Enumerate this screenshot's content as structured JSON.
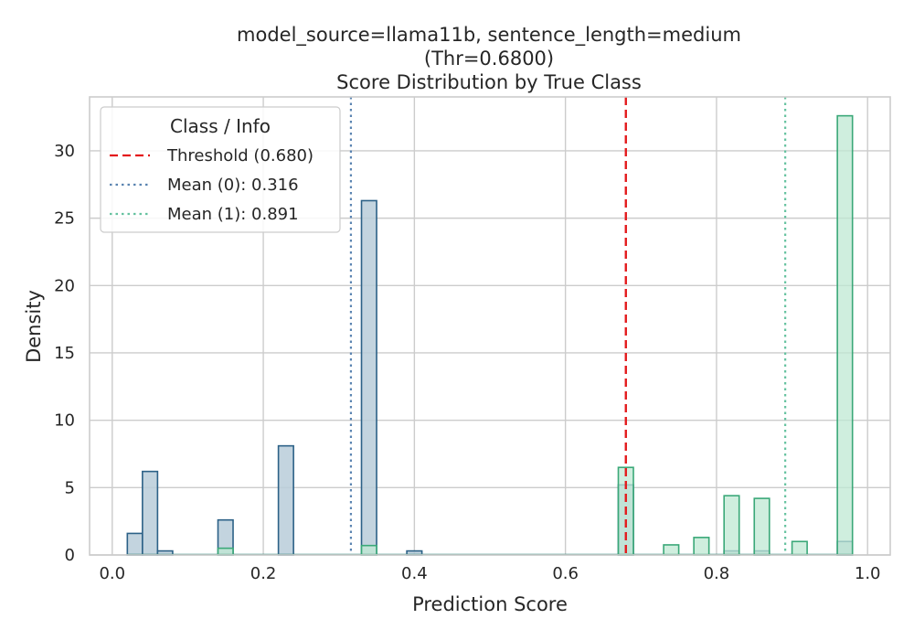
{
  "chart_data": {
    "type": "histogram",
    "title_lines": [
      "model_source=llama11b, sentence_length=medium",
      "(Thr=0.6800)",
      "Score Distribution by True Class"
    ],
    "xlabel": "Prediction Score",
    "ylabel": "Density",
    "xlim": [
      -0.03,
      1.03
    ],
    "ylim": [
      0,
      34
    ],
    "xticks": [
      0.0,
      0.2,
      0.4,
      0.6,
      0.8,
      1.0
    ],
    "xtick_labels": [
      "0.0",
      "0.2",
      "0.4",
      "0.6",
      "0.8",
      "1.0"
    ],
    "yticks": [
      0,
      5,
      10,
      15,
      20,
      25,
      30
    ],
    "ytick_labels": [
      "0",
      "5",
      "10",
      "15",
      "20",
      "25",
      "30"
    ],
    "grid": true,
    "bin_width": 0.02,
    "series": [
      {
        "class": "0",
        "color": "#2c6187",
        "fill": "#b9ccd9",
        "bins": [
          {
            "x0": 0.02,
            "y": 1.6
          },
          {
            "x0": 0.04,
            "y": 6.2
          },
          {
            "x0": 0.06,
            "y": 0.3
          },
          {
            "x0": 0.14,
            "y": 2.6
          },
          {
            "x0": 0.22,
            "y": 8.1
          },
          {
            "x0": 0.33,
            "y": 26.3
          },
          {
            "x0": 0.39,
            "y": 0.3
          },
          {
            "x0": 0.67,
            "y": 5.2
          },
          {
            "x0": 0.81,
            "y": 0.3
          },
          {
            "x0": 0.85,
            "y": 0.3
          },
          {
            "x0": 0.96,
            "y": 1.0
          }
        ],
        "mean": 0.316
      },
      {
        "class": "1",
        "color": "#3aa878",
        "fill": "#bfe8d3",
        "bins": [
          {
            "x0": 0.14,
            "y": 0.5
          },
          {
            "x0": 0.33,
            "y": 0.7
          },
          {
            "x0": 0.67,
            "y": 6.5
          },
          {
            "x0": 0.73,
            "y": 0.75
          },
          {
            "x0": 0.77,
            "y": 1.3
          },
          {
            "x0": 0.81,
            "y": 4.4
          },
          {
            "x0": 0.85,
            "y": 4.2
          },
          {
            "x0": 0.9,
            "y": 1.0
          },
          {
            "x0": 0.96,
            "y": 32.6
          }
        ],
        "mean": 0.891
      }
    ],
    "threshold": 0.68,
    "threshold_color": "#e31a1c",
    "mean0_color": "#5b84b1",
    "mean1_color": "#66c2a0",
    "legend": {
      "title": "Class / Info",
      "entries": [
        "Threshold (0.680)",
        "Mean (0): 0.316",
        "Mean (1): 0.891"
      ],
      "placement": "top-left"
    }
  }
}
